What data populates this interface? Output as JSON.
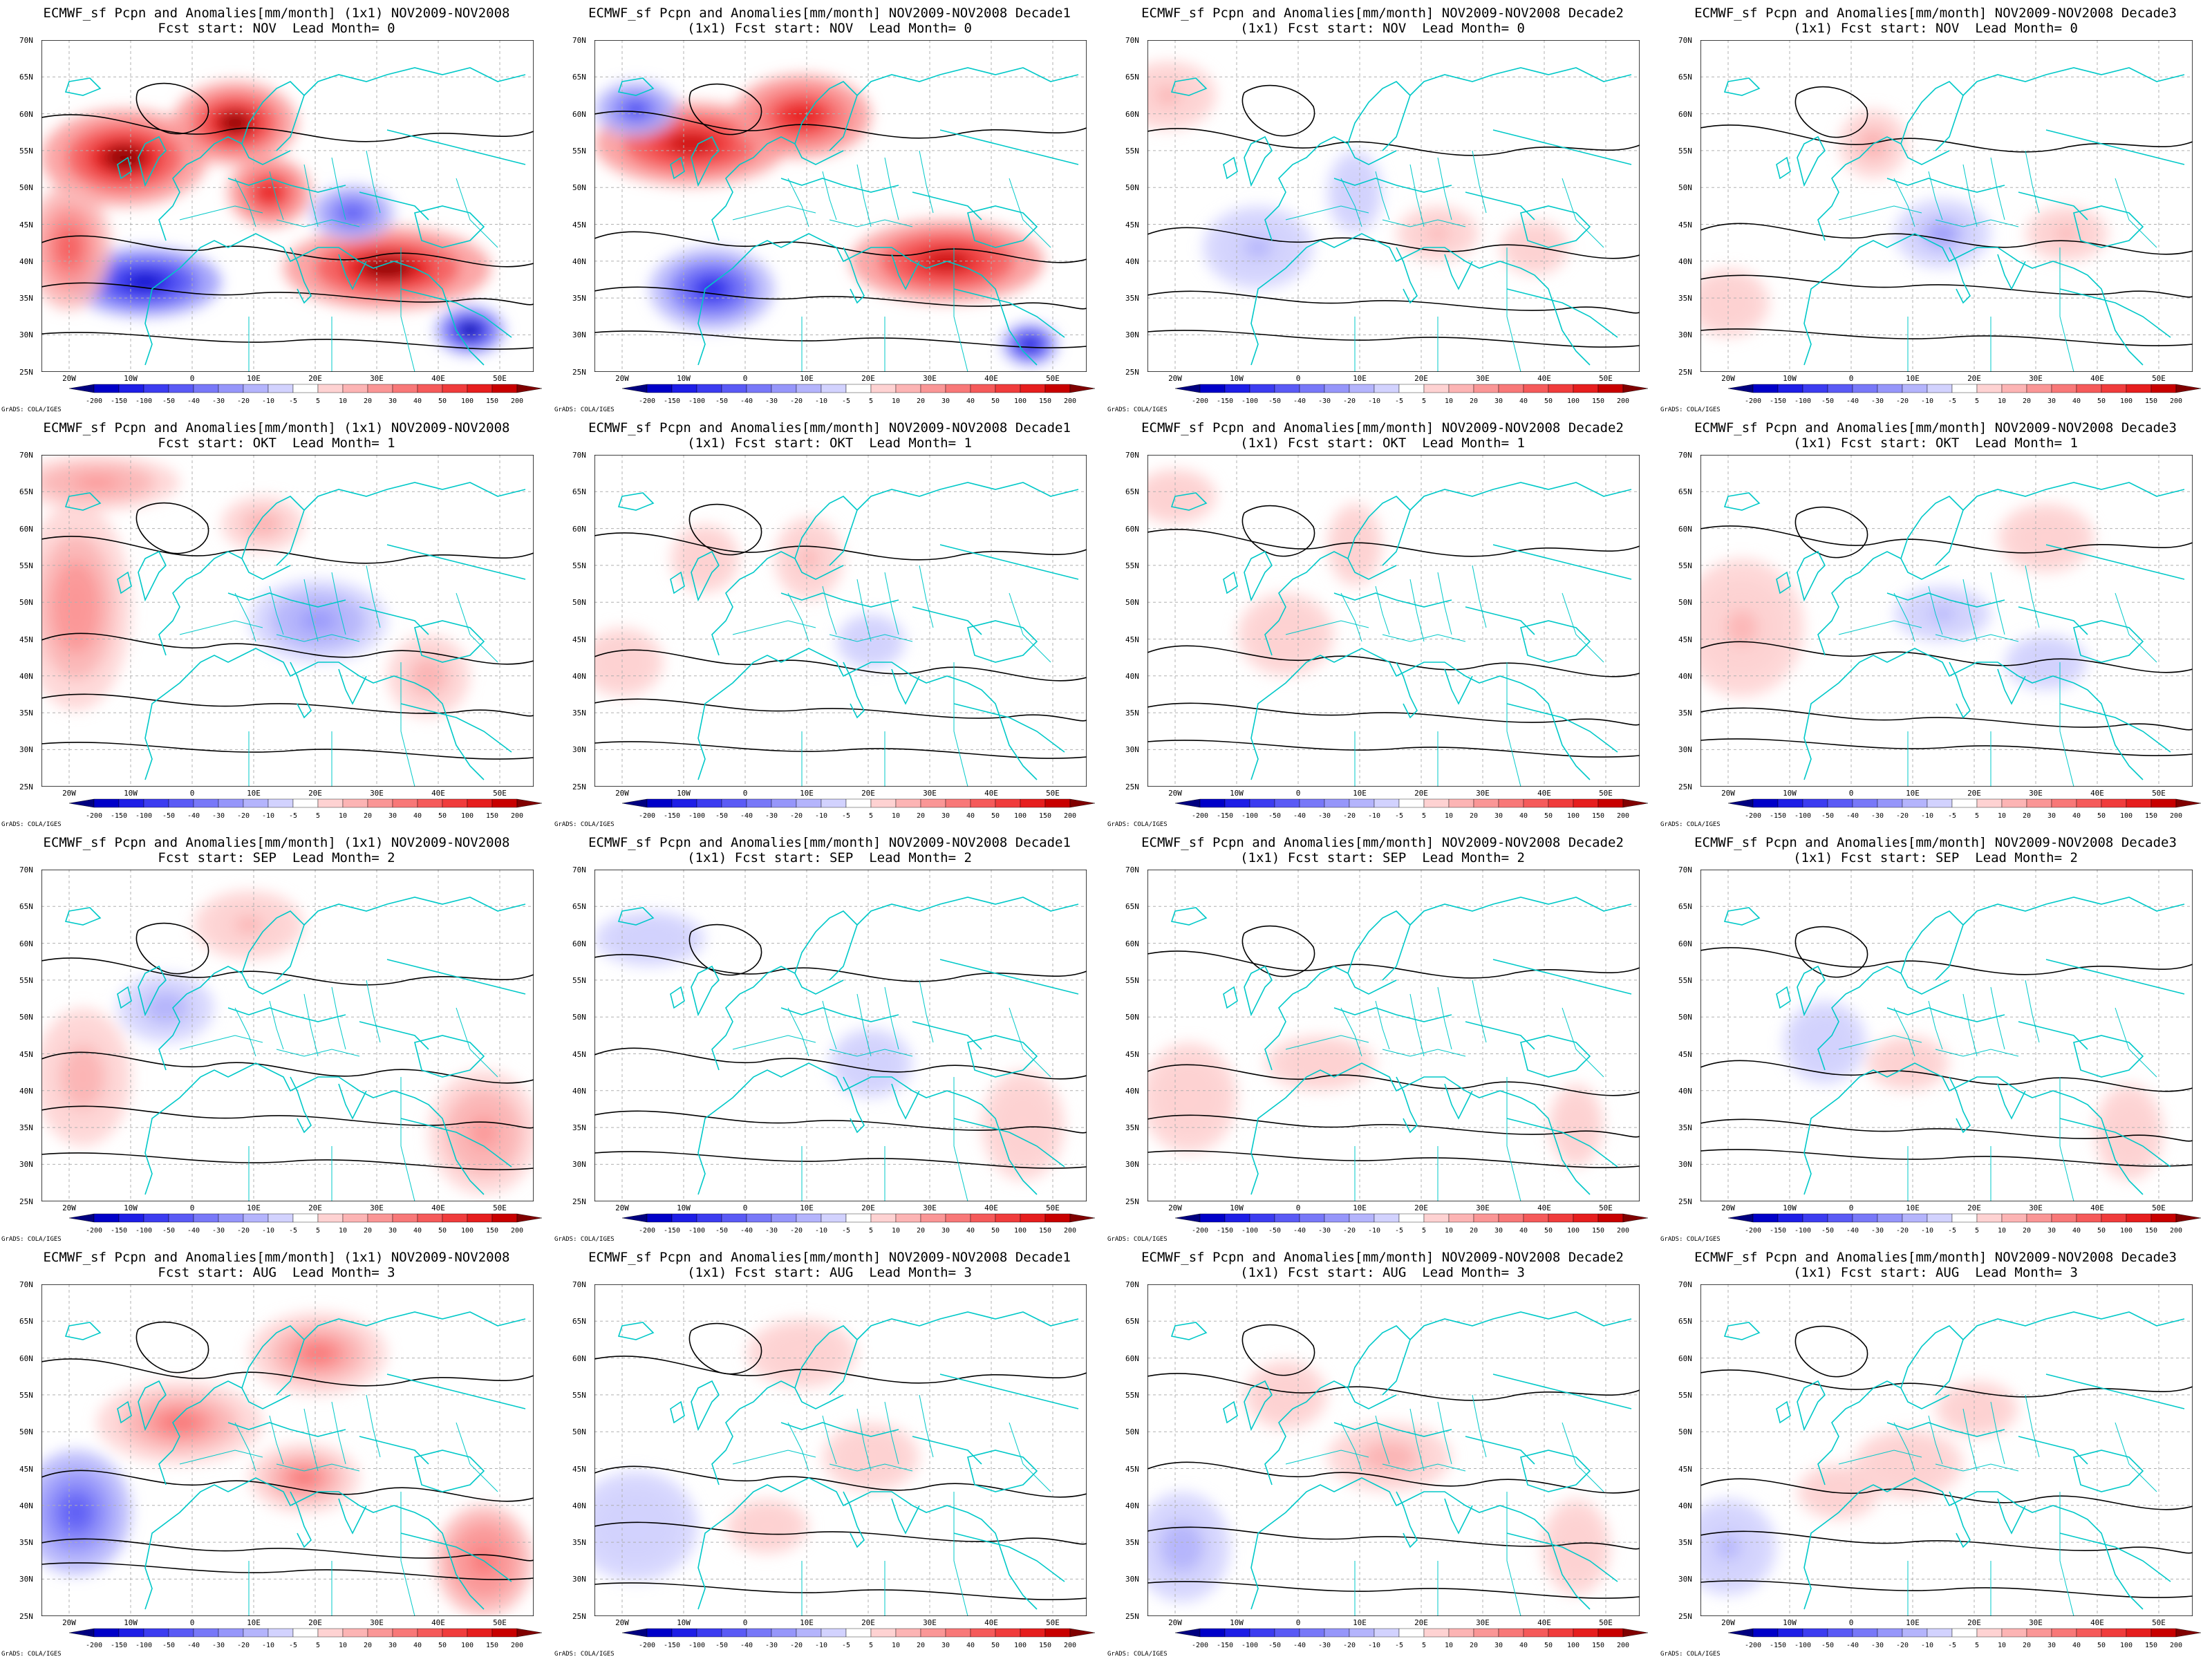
{
  "panels": [
    {
      "title1": "ECMWF_sf Pcpn and Anomalies[mm/month] (1x1) NOV2009-NOV2008",
      "title2": "Fcst start: NOV  Lead Month= 0",
      "intensity": 1.0
    },
    {
      "title1": "ECMWF_sf Pcpn and Anomalies[mm/month] NOV2009-NOV2008 Decade1",
      "title2": "(1x1) Fcst start: NOV  Lead Month= 0",
      "intensity": 0.9
    },
    {
      "title1": "ECMWF_sf Pcpn and Anomalies[mm/month] NOV2009-NOV2008 Decade2",
      "title2": "(1x1) Fcst start: NOV  Lead Month= 0",
      "intensity": 0.35
    },
    {
      "title1": "ECMWF_sf Pcpn and Anomalies[mm/month] NOV2009-NOV2008 Decade3",
      "title2": "(1x1) Fcst start: NOV  Lead Month= 0",
      "intensity": 0.4
    },
    {
      "title1": "ECMWF_sf Pcpn and Anomalies[mm/month] (1x1) NOV2009-NOV2008",
      "title2": "Fcst start: OKT  Lead Month= 1",
      "intensity": 0.55
    },
    {
      "title1": "ECMWF_sf Pcpn and Anomalies[mm/month] NOV2009-NOV2008 Decade1",
      "title2": "(1x1) Fcst start: OKT  Lead Month= 1",
      "intensity": 0.3
    },
    {
      "title1": "ECMWF_sf Pcpn and Anomalies[mm/month] NOV2009-NOV2008 Decade2",
      "title2": "(1x1) Fcst start: OKT  Lead Month= 1",
      "intensity": 0.25
    },
    {
      "title1": "ECMWF_sf Pcpn and Anomalies[mm/month] NOV2009-NOV2008 Decade3",
      "title2": "(1x1) Fcst start: OKT  Lead Month= 1",
      "intensity": 0.35
    },
    {
      "title1": "ECMWF_sf Pcpn and Anomalies[mm/month] (1x1) NOV2009-NOV2008",
      "title2": "Fcst start: SEP  Lead Month= 2",
      "intensity": 0.45
    },
    {
      "title1": "ECMWF_sf Pcpn and Anomalies[mm/month] NOV2009-NOV2008 Decade1",
      "title2": "(1x1) Fcst start: SEP  Lead Month= 2",
      "intensity": 0.25
    },
    {
      "title1": "ECMWF_sf Pcpn and Anomalies[mm/month] NOV2009-NOV2008 Decade2",
      "title2": "(1x1) Fcst start: SEP  Lead Month= 2",
      "intensity": 0.2
    },
    {
      "title1": "ECMWF_sf Pcpn and Anomalies[mm/month] NOV2009-NOV2008 Decade3",
      "title2": "(1x1) Fcst start: SEP  Lead Month= 2",
      "intensity": 0.2
    },
    {
      "title1": "ECMWF_sf Pcpn and Anomalies[mm/month] (1x1) NOV2009-NOV2008",
      "title2": "Fcst start: AUG  Lead Month= 3",
      "intensity": 0.7
    },
    {
      "title1": "ECMWF_sf Pcpn and Anomalies[mm/month] NOV2009-NOV2008 Decade1",
      "title2": "(1x1) Fcst start: AUG  Lead Month= 3",
      "intensity": 0.3
    },
    {
      "title1": "ECMWF_sf Pcpn and Anomalies[mm/month] NOV2009-NOV2008 Decade2",
      "title2": "(1x1) Fcst start: AUG  Lead Month= 3",
      "intensity": 0.4
    },
    {
      "title1": "ECMWF_sf Pcpn and Anomalies[mm/month] NOV2009-NOV2008 Decade3",
      "title2": "(1x1) Fcst start: AUG  Lead Month= 3",
      "intensity": 0.35
    }
  ],
  "axes": {
    "lat_labels": [
      "70N",
      "65N",
      "60N",
      "55N",
      "50N",
      "45N",
      "40N",
      "35N",
      "30N",
      "25N"
    ],
    "lon_labels": [
      "20W",
      "10W",
      "0",
      "10E",
      "20E",
      "30E",
      "40E",
      "50E"
    ]
  },
  "colorbar": {
    "labels": [
      "-200",
      "-150",
      "-100",
      "-50",
      "-40",
      "-30",
      "-20",
      "-10",
      "-5",
      "5",
      "10",
      "20",
      "30",
      "40",
      "50",
      "100",
      "150",
      "200"
    ],
    "colors": [
      "#000080",
      "#0000c8",
      "#1e1ee6",
      "#3c3cf0",
      "#5a5af5",
      "#7878f8",
      "#9696fa",
      "#b4b4fc",
      "#d2d2fe",
      "#ffffff",
      "#fed2d2",
      "#fcb4b4",
      "#fa9696",
      "#f87878",
      "#f55a5a",
      "#f03c3c",
      "#e61e1e",
      "#c80000",
      "#800000"
    ]
  },
  "credit": "GrADS: COLA/IGES",
  "colors": {
    "coast": "#00c8c8",
    "contour": "#000000",
    "grid": "#b0b0b0"
  }
}
